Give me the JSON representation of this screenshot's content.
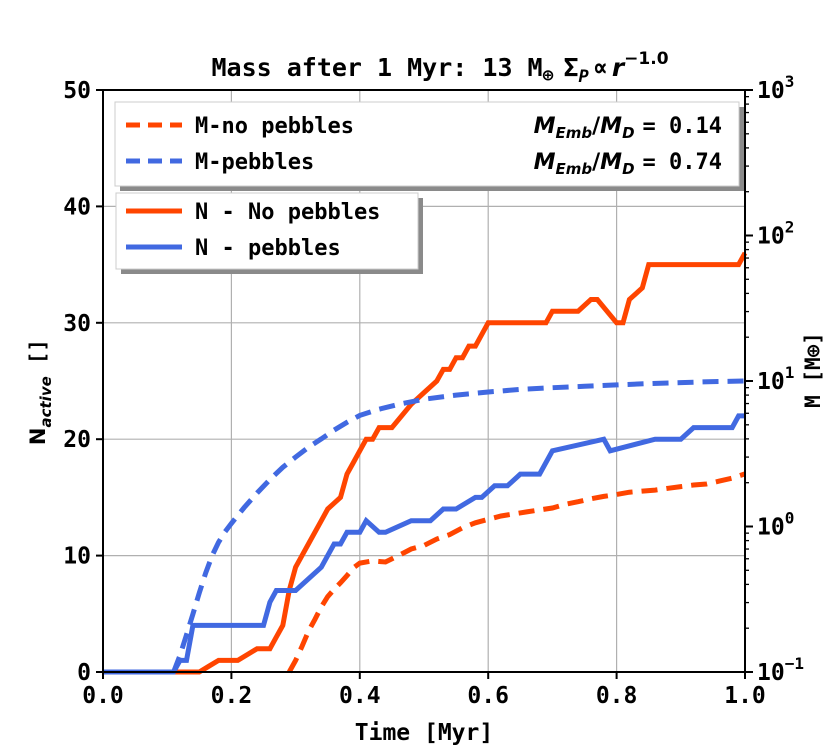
{
  "chart_data": {
    "type": "line",
    "title": {
      "prefix": "Mass after 1 Myr: 13 M",
      "earth_symbol": "⊕",
      "sigma": "Σ",
      "sigma_sub": "P",
      "propto": "∝",
      "r": "r",
      "exponent": "−1.0"
    },
    "xlabel": "Time [Myr]",
    "ylabel": {
      "base": "N",
      "sub": "active",
      "unit": "[]"
    },
    "y2label": "M [M⊕]",
    "xlim": [
      0.0,
      1.0
    ],
    "ylim": [
      0,
      50
    ],
    "y2lim": [
      0.1,
      1000
    ],
    "x_ticks": [
      "0.0",
      "0.2",
      "0.4",
      "0.6",
      "0.8",
      "1.0"
    ],
    "y_ticks": [
      "0",
      "10",
      "20",
      "30",
      "40",
      "50"
    ],
    "y2_ticks": [
      {
        "base": "10",
        "exp": "−1",
        "value": 0.1
      },
      {
        "base": "10",
        "exp": "0",
        "value": 1
      },
      {
        "base": "10",
        "exp": "1",
        "value": 10
      },
      {
        "base": "10",
        "exp": "2",
        "value": 100
      },
      {
        "base": "10",
        "exp": "3",
        "value": 1000
      }
    ],
    "grid": true,
    "colors": {
      "no_pebbles": "#ff4500",
      "pebbles": "#4169e1"
    },
    "legend_mass": {
      "position": "top-left",
      "entries": [
        {
          "label": "M-no pebbles",
          "ratio_label": "M",
          "ratio_sub1": "Emb",
          "ratio_sub2": "D",
          "ratio_value": "= 0.14",
          "color": "#ff4500",
          "style": "dashed"
        },
        {
          "label": "M-pebbles",
          "ratio_label": "M",
          "ratio_sub1": "Emb",
          "ratio_sub2": "D",
          "ratio_value": "= 0.74",
          "color": "#4169e1",
          "style": "dashed"
        }
      ]
    },
    "legend_count": {
      "position": "upper-left",
      "entries": [
        {
          "label": "N - No pebbles",
          "color": "#ff4500",
          "style": "solid"
        },
        {
          "label": "N - pebbles",
          "color": "#4169e1",
          "style": "solid"
        }
      ]
    },
    "series": [
      {
        "name": "N - No pebbles",
        "axis": "left",
        "style": "solid",
        "color": "#ff4500",
        "step": true,
        "x": [
          0.0,
          0.15,
          0.165,
          0.18,
          0.21,
          0.225,
          0.24,
          0.26,
          0.27,
          0.28,
          0.29,
          0.3,
          0.31,
          0.32,
          0.34,
          0.35,
          0.36,
          0.37,
          0.38,
          0.39,
          0.4,
          0.41,
          0.42,
          0.43,
          0.44,
          0.45,
          0.48,
          0.5,
          0.52,
          0.53,
          0.54,
          0.55,
          0.56,
          0.57,
          0.58,
          0.59,
          0.6,
          0.63,
          0.66,
          0.69,
          0.7,
          0.71,
          0.74,
          0.76,
          0.77,
          0.8,
          0.81,
          0.82,
          0.84,
          0.85,
          0.95,
          0.97,
          0.99,
          1.0
        ],
        "y": [
          0,
          0,
          0.5,
          1,
          1,
          1.5,
          2,
          2,
          3,
          4,
          7,
          9,
          10,
          11,
          13,
          14,
          14.5,
          15,
          17,
          18,
          19,
          20,
          20,
          21,
          21,
          21,
          23,
          24,
          25,
          26,
          26,
          27,
          27,
          28,
          28,
          29,
          30,
          30,
          30,
          30,
          31,
          31,
          31,
          32,
          32,
          30,
          30,
          32,
          33,
          35,
          35,
          35,
          35,
          36
        ]
      },
      {
        "name": "N - pebbles",
        "axis": "left",
        "style": "solid",
        "color": "#4169e1",
        "step": true,
        "x": [
          0.0,
          0.11,
          0.12,
          0.13,
          0.14,
          0.25,
          0.26,
          0.27,
          0.28,
          0.3,
          0.34,
          0.35,
          0.36,
          0.37,
          0.38,
          0.4,
          0.41,
          0.43,
          0.44,
          0.48,
          0.5,
          0.51,
          0.53,
          0.55,
          0.58,
          0.59,
          0.61,
          0.63,
          0.65,
          0.68,
          0.7,
          0.78,
          0.79,
          0.86,
          0.89,
          0.9,
          0.92,
          0.98,
          0.99,
          1.0
        ],
        "y": [
          0,
          0,
          1,
          1,
          4,
          4,
          6,
          7,
          7,
          7,
          9,
          10,
          11,
          11,
          12,
          12,
          13,
          12,
          12,
          13,
          13,
          13,
          14,
          14,
          15,
          15,
          16,
          16,
          17,
          17,
          19,
          20,
          19,
          20,
          20,
          20,
          21,
          21,
          22,
          22
        ]
      },
      {
        "name": "M-no pebbles",
        "axis": "right",
        "style": "dashed",
        "color": "#ff4500",
        "x": [
          0.29,
          0.3,
          0.31,
          0.32,
          0.33,
          0.34,
          0.35,
          0.36,
          0.37,
          0.38,
          0.39,
          0.4,
          0.42,
          0.44,
          0.46,
          0.48,
          0.5,
          0.52,
          0.54,
          0.56,
          0.58,
          0.6,
          0.62,
          0.64,
          0.66,
          0.68,
          0.7,
          0.72,
          0.74,
          0.76,
          0.78,
          0.8,
          0.82,
          0.84,
          0.86,
          0.88,
          0.9,
          0.92,
          0.94,
          0.96,
          0.98,
          1.0
        ],
        "y": [
          0.1,
          0.12,
          0.15,
          0.19,
          0.23,
          0.28,
          0.33,
          0.37,
          0.41,
          0.46,
          0.52,
          0.56,
          0.58,
          0.57,
          0.63,
          0.7,
          0.74,
          0.82,
          0.88,
          0.98,
          1.06,
          1.12,
          1.18,
          1.22,
          1.26,
          1.3,
          1.34,
          1.42,
          1.48,
          1.55,
          1.61,
          1.66,
          1.72,
          1.75,
          1.78,
          1.83,
          1.88,
          1.93,
          1.96,
          2.05,
          2.15,
          2.3
        ]
      },
      {
        "name": "M-pebbles",
        "axis": "right",
        "style": "dashed",
        "color": "#4169e1",
        "x": [
          0.11,
          0.12,
          0.13,
          0.14,
          0.15,
          0.16,
          0.17,
          0.18,
          0.19,
          0.2,
          0.22,
          0.24,
          0.26,
          0.28,
          0.3,
          0.32,
          0.34,
          0.36,
          0.38,
          0.4,
          0.43,
          0.46,
          0.5,
          0.55,
          0.6,
          0.65,
          0.7,
          0.75,
          0.8,
          0.85,
          0.9,
          0.95,
          1.0
        ],
        "y": [
          0.1,
          0.13,
          0.18,
          0.25,
          0.35,
          0.48,
          0.63,
          0.78,
          0.92,
          1.05,
          1.35,
          1.7,
          2.1,
          2.55,
          3.0,
          3.5,
          4.0,
          4.6,
          5.2,
          5.8,
          6.4,
          6.9,
          7.5,
          8.0,
          8.4,
          8.75,
          9.0,
          9.2,
          9.4,
          9.6,
          9.75,
          9.9,
          10.0
        ]
      }
    ]
  }
}
